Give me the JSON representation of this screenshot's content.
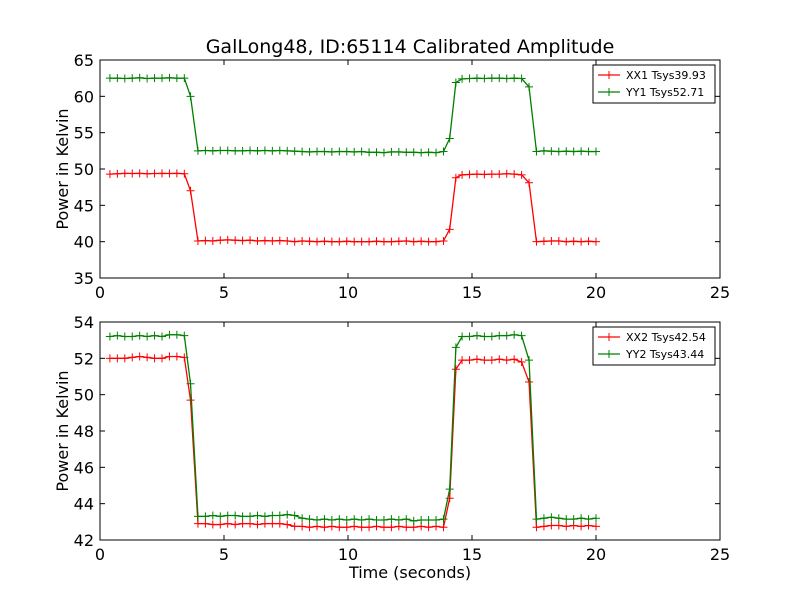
{
  "figure": {
    "title": "GalLong48, ID:65114 Calibrated Amplitude",
    "xlabel": "Time (seconds)"
  },
  "chart_data": [
    {
      "type": "line",
      "xlabel": "",
      "ylabel": "Power in Kelvin",
      "xlim": [
        0,
        25
      ],
      "ylim": [
        35,
        65
      ],
      "xticks": [
        0,
        5,
        10,
        15,
        20,
        25
      ],
      "yticks": [
        35,
        40,
        45,
        50,
        55,
        60,
        65
      ],
      "grid": false,
      "legend_position": "top-right",
      "x": [
        0.4,
        0.7,
        1.0,
        1.3,
        1.6,
        1.9,
        2.2,
        2.5,
        2.8,
        3.1,
        3.4,
        3.65,
        3.95,
        4.25,
        4.55,
        4.85,
        5.15,
        5.45,
        5.75,
        6.05,
        6.35,
        6.65,
        6.95,
        7.25,
        7.55,
        7.85,
        8.15,
        8.45,
        8.75,
        9.05,
        9.35,
        9.65,
        9.95,
        10.25,
        10.55,
        10.85,
        11.15,
        11.45,
        11.75,
        12.05,
        12.35,
        12.65,
        12.95,
        13.25,
        13.55,
        13.85,
        14.1,
        14.35,
        14.6,
        14.9,
        15.2,
        15.5,
        15.8,
        16.1,
        16.4,
        16.7,
        17.0,
        17.3,
        17.6,
        17.9,
        18.2,
        18.5,
        18.8,
        19.1,
        19.4,
        19.7,
        20.0
      ],
      "series": [
        {
          "name": "XX1 Tsys39.93",
          "color": "#ff0000",
          "values": [
            49.3,
            49.35,
            49.4,
            49.38,
            49.4,
            49.35,
            49.38,
            49.4,
            49.38,
            49.4,
            49.35,
            47.0,
            40.1,
            40.15,
            40.1,
            40.2,
            40.25,
            40.2,
            40.15,
            40.2,
            40.1,
            40.15,
            40.1,
            40.15,
            40.1,
            40.0,
            40.1,
            40.05,
            40.0,
            40.05,
            40.0,
            40.0,
            40.05,
            40.0,
            40.0,
            40.0,
            40.05,
            40.0,
            40.0,
            40.05,
            40.1,
            40.0,
            40.05,
            40.0,
            40.0,
            40.1,
            41.7,
            48.8,
            49.2,
            49.25,
            49.3,
            49.25,
            49.3,
            49.3,
            49.35,
            49.3,
            49.2,
            48.1,
            40.0,
            40.05,
            40.1,
            40.1,
            40.0,
            40.05,
            40.0,
            40.05,
            40.0
          ]
        },
        {
          "name": "YY1 Tsys52.71",
          "color": "#008000",
          "values": [
            62.5,
            62.5,
            62.45,
            62.5,
            62.55,
            62.45,
            62.5,
            62.5,
            62.55,
            62.5,
            62.5,
            60.0,
            52.5,
            52.55,
            52.5,
            52.55,
            52.55,
            52.5,
            52.5,
            52.55,
            52.5,
            52.55,
            52.5,
            52.55,
            52.5,
            52.45,
            52.4,
            52.35,
            52.4,
            52.4,
            52.35,
            52.4,
            52.4,
            52.35,
            52.4,
            52.3,
            52.3,
            52.25,
            52.35,
            52.35,
            52.3,
            52.3,
            52.25,
            52.3,
            52.25,
            52.4,
            54.2,
            61.9,
            62.4,
            62.45,
            62.5,
            62.45,
            62.5,
            62.5,
            62.45,
            62.5,
            62.45,
            61.3,
            52.4,
            52.5,
            52.45,
            52.4,
            52.45,
            52.4,
            52.45,
            52.4,
            52.4
          ]
        }
      ]
    },
    {
      "type": "line",
      "xlabel": "Time (seconds)",
      "ylabel": "Power in Kelvin",
      "xlim": [
        0,
        25
      ],
      "ylim": [
        42,
        54
      ],
      "xticks": [
        0,
        5,
        10,
        15,
        20,
        25
      ],
      "yticks": [
        42,
        44,
        46,
        48,
        50,
        52,
        54
      ],
      "grid": false,
      "legend_position": "top-right",
      "x": [
        0.4,
        0.7,
        1.0,
        1.3,
        1.6,
        1.9,
        2.2,
        2.5,
        2.8,
        3.1,
        3.4,
        3.65,
        3.95,
        4.25,
        4.55,
        4.85,
        5.15,
        5.45,
        5.75,
        6.05,
        6.35,
        6.65,
        6.95,
        7.25,
        7.55,
        7.85,
        8.15,
        8.45,
        8.75,
        9.05,
        9.35,
        9.65,
        9.95,
        10.25,
        10.55,
        10.85,
        11.15,
        11.45,
        11.75,
        12.05,
        12.35,
        12.65,
        12.95,
        13.25,
        13.55,
        13.85,
        14.1,
        14.35,
        14.6,
        14.9,
        15.2,
        15.5,
        15.8,
        16.1,
        16.4,
        16.7,
        17.0,
        17.3,
        17.6,
        17.9,
        18.2,
        18.5,
        18.8,
        19.1,
        19.4,
        19.7,
        20.0
      ],
      "series": [
        {
          "name": "XX2 Tsys42.54",
          "color": "#ff0000",
          "values": [
            52.0,
            52.0,
            52.0,
            52.05,
            52.1,
            52.05,
            52.0,
            52.0,
            52.1,
            52.1,
            52.05,
            49.7,
            42.9,
            42.9,
            42.85,
            42.85,
            42.9,
            42.85,
            42.9,
            42.9,
            42.85,
            42.9,
            42.9,
            42.9,
            42.85,
            42.75,
            42.75,
            42.7,
            42.75,
            42.7,
            42.75,
            42.7,
            42.7,
            42.75,
            42.7,
            42.7,
            42.75,
            42.7,
            42.7,
            42.75,
            42.7,
            42.7,
            42.75,
            42.7,
            42.75,
            42.7,
            44.3,
            51.4,
            51.9,
            51.9,
            51.95,
            51.9,
            51.9,
            51.95,
            51.9,
            51.95,
            51.8,
            50.7,
            42.7,
            42.75,
            42.8,
            42.8,
            42.75,
            42.8,
            42.75,
            42.8,
            42.75
          ]
        },
        {
          "name": "YY2 Tsys43.44",
          "color": "#008000",
          "values": [
            53.2,
            53.25,
            53.2,
            53.2,
            53.25,
            53.2,
            53.25,
            53.2,
            53.3,
            53.3,
            53.25,
            50.6,
            43.3,
            43.3,
            43.35,
            43.3,
            43.35,
            43.35,
            43.3,
            43.3,
            43.35,
            43.3,
            43.35,
            43.35,
            43.4,
            43.35,
            43.2,
            43.15,
            43.1,
            43.15,
            43.1,
            43.15,
            43.1,
            43.15,
            43.1,
            43.15,
            43.1,
            43.1,
            43.15,
            43.1,
            43.15,
            43.05,
            43.1,
            43.1,
            43.1,
            43.15,
            44.8,
            52.6,
            53.2,
            53.2,
            53.25,
            53.2,
            53.2,
            53.25,
            53.25,
            53.3,
            53.25,
            51.9,
            43.15,
            43.2,
            43.25,
            43.2,
            43.15,
            43.15,
            43.2,
            43.15,
            43.2
          ]
        }
      ]
    }
  ]
}
